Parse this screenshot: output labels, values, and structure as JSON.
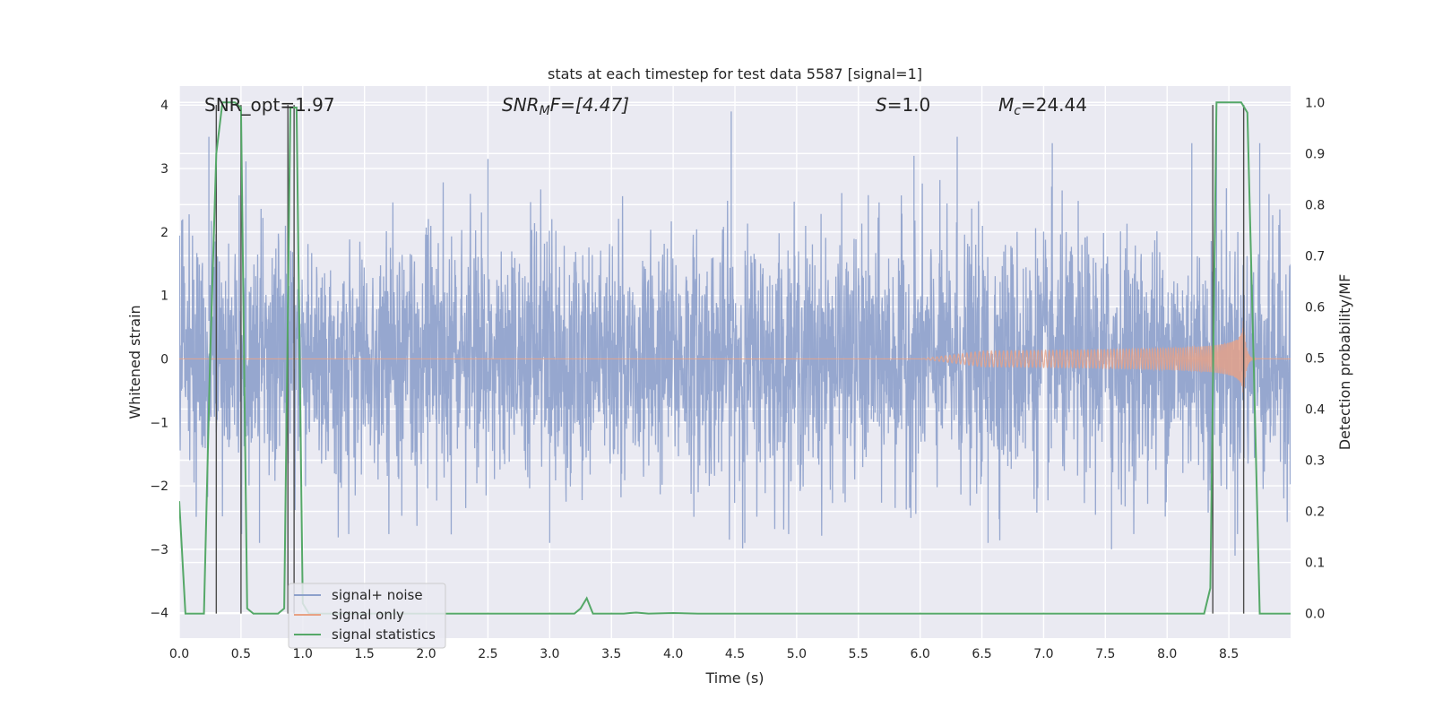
{
  "chart_data": {
    "type": "line",
    "title": "stats at each timestep for test data 5587 [signal=1]",
    "xlabel": "Time (s)",
    "ylabel": "Whitened strain",
    "y2label": "Detection probability/MF",
    "xlim": [
      0.0,
      9.0
    ],
    "ylim": [
      -4.4,
      4.3
    ],
    "y2lim": [
      -0.048,
      1.032
    ],
    "xticks": [
      0.0,
      0.5,
      1.0,
      1.5,
      2.0,
      2.5,
      3.0,
      3.5,
      4.0,
      4.5,
      5.0,
      5.5,
      6.0,
      6.5,
      7.0,
      7.5,
      8.0,
      8.5
    ],
    "xtick_labels": [
      "0.0",
      "0.5",
      "1.0",
      "1.5",
      "2.0",
      "2.5",
      "3.0",
      "3.5",
      "4.0",
      "4.5",
      "5.0",
      "5.5",
      "6.0",
      "6.5",
      "7.0",
      "7.5",
      "8.0",
      "8.5"
    ],
    "yticks": [
      -4,
      -3,
      -2,
      -1,
      0,
      1,
      2,
      3,
      4
    ],
    "ytick_labels": [
      "−4",
      "−3",
      "−2",
      "−1",
      "0",
      "1",
      "2",
      "3",
      "4"
    ],
    "y2ticks": [
      0.0,
      0.1,
      0.2,
      0.3,
      0.4,
      0.5,
      0.6,
      0.7,
      0.8,
      0.9,
      1.0
    ],
    "y2tick_labels": [
      "0.0",
      "0.1",
      "0.2",
      "0.3",
      "0.4",
      "0.5",
      "0.6",
      "0.7",
      "0.8",
      "0.9",
      "1.0"
    ],
    "grid": true,
    "legend_position": "lower-left",
    "annotations": {
      "snr_opt": "SNR_opt=1.97",
      "snr_mf_main": "SNR",
      "snr_mf_sub": "M",
      "snr_mf_rest": "F=[4.47]",
      "s_main": "S",
      "s_rest": "=1.0",
      "mc_main": "M",
      "mc_sub": "c",
      "mc_rest": "=24.44"
    },
    "series": [
      {
        "name": "signal+ noise",
        "color": "#8da0cb",
        "kind": "noise",
        "approx_range": [
          -3.0,
          3.9
        ],
        "peaks": [
          [
            0.24,
            3.5
          ],
          [
            2.5,
            3.15
          ],
          [
            4.47,
            3.9
          ],
          [
            5.95,
            3.2
          ],
          [
            6.3,
            3.5
          ],
          [
            7.07,
            3.4
          ],
          [
            8.2,
            3.4
          ],
          [
            8.4,
            3.9
          ],
          [
            8.75,
            3.4
          ]
        ],
        "troughs": [
          [
            0.65,
            -2.9
          ],
          [
            3.0,
            -2.9
          ],
          [
            4.58,
            -2.9
          ],
          [
            6.55,
            -2.9
          ],
          [
            7.55,
            -3.0
          ],
          [
            8.55,
            -3.1
          ]
        ]
      },
      {
        "name": "signal only",
        "color": "#e8a184",
        "kind": "chirp",
        "chirp_start": 6.0,
        "merger_time": 8.62,
        "peak_amplitude": 0.6,
        "ringdown_end": 8.72
      },
      {
        "name": "signal statistics",
        "color": "#55a868",
        "kind": "probability",
        "x": [
          0.0,
          0.05,
          0.1,
          0.15,
          0.2,
          0.25,
          0.3,
          0.35,
          0.4,
          0.45,
          0.5,
          0.55,
          0.6,
          0.65,
          0.7,
          0.75,
          0.8,
          0.85,
          0.9,
          0.95,
          1.0,
          1.05,
          1.1,
          1.2,
          1.5,
          2.0,
          2.5,
          3.0,
          3.2,
          3.25,
          3.3,
          3.35,
          3.4,
          3.5,
          3.6,
          3.65,
          3.7,
          3.8,
          4.0,
          4.2,
          5.0,
          6.0,
          7.0,
          8.0,
          8.3,
          8.35,
          8.4,
          8.45,
          8.5,
          8.55,
          8.6,
          8.65,
          8.7,
          8.75,
          8.8,
          8.85,
          8.9,
          9.0
        ],
        "values": [
          0.22,
          0.0,
          0.0,
          0.0,
          0.0,
          0.5,
          0.9,
          1.0,
          1.0,
          1.0,
          0.99,
          0.01,
          0.0,
          0.0,
          0.0,
          0.0,
          0.0,
          0.01,
          0.99,
          0.99,
          0.02,
          0.0,
          0.0,
          0.0,
          0.0,
          0.0,
          0.0,
          0.0,
          0.0,
          0.01,
          0.03,
          0.0,
          0.0,
          0.0,
          0.0,
          0.001,
          0.002,
          0.0,
          0.001,
          0.0,
          0.0,
          0.0,
          0.0,
          0.0,
          0.0,
          0.05,
          1.0,
          1.0,
          1.0,
          1.0,
          1.0,
          0.98,
          0.5,
          0.0,
          0.0,
          0.0,
          0.0,
          0.0
        ]
      },
      {
        "name": "",
        "color": "#4c4c4c",
        "kind": "detection-markers",
        "axis": "y2",
        "x": [
          0.3,
          0.5,
          0.88,
          0.93,
          8.37,
          8.62
        ],
        "y2_range": [
          0.0,
          0.995
        ]
      }
    ]
  }
}
